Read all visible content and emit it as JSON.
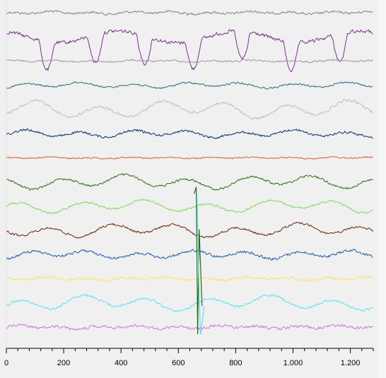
{
  "chart_data": {
    "type": "line",
    "title": "",
    "xlabel": "",
    "ylabel": "",
    "xlim": [
      0,
      1280
    ],
    "x_ticks": [
      0,
      200,
      400,
      600,
      800,
      1000,
      1200
    ],
    "x_tick_labels": [
      "0",
      "200",
      "400",
      "600",
      "800",
      "1.000",
      "1.200"
    ],
    "grid": false,
    "background": "#f0f0f0",
    "series": [
      {
        "color": "#808080",
        "amplitude": 0.25,
        "waveform": "noise-dominant"
      },
      {
        "color": "#7b2f8e",
        "amplitude": 1.35,
        "waveform": "deep-spikes"
      },
      {
        "color": "#9a9a9a",
        "amplitude": 0.18,
        "waveform": "noise-dominant"
      },
      {
        "color": "#2f6b7f",
        "amplitude": 0.35,
        "waveform": "mixed"
      },
      {
        "color": "#bdbdbd",
        "amplitude": 0.75,
        "waveform": "slow-wave"
      },
      {
        "color": "#0b2b6e",
        "amplitude": 0.45,
        "waveform": "mixed"
      },
      {
        "color": "#d2642a",
        "amplitude": 0.15,
        "waveform": "noise-dominant"
      },
      {
        "color": "#2f6b12",
        "amplitude": 0.6,
        "waveform": "slow-wave"
      },
      {
        "color": "#7ed956",
        "amplitude": 0.55,
        "waveform": "slow-wave"
      },
      {
        "color": "#6b2410",
        "amplitude": 0.6,
        "waveform": "slow-wave"
      },
      {
        "color": "#1f5aa6",
        "amplitude": 0.5,
        "waveform": "mixed"
      },
      {
        "color": "#f7e36b",
        "amplitude": 0.3,
        "waveform": "noise-dominant"
      },
      {
        "color": "#5fe0f0",
        "amplitude": 0.65,
        "waveform": "slow-wave"
      },
      {
        "color": "#d46ee8",
        "amplitude": 0.3,
        "waveform": "noise-dominant"
      }
    ],
    "artifact": {
      "x_start": 655,
      "x_end": 690,
      "colors": [
        "#2f6b12",
        "#5fe0f0"
      ]
    }
  }
}
